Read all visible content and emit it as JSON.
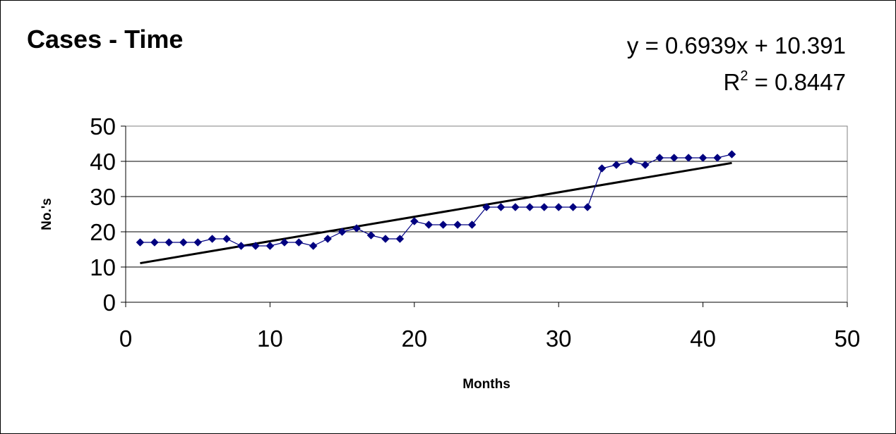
{
  "chart_data": {
    "type": "scatter",
    "title": "Cases - Time",
    "xlabel": "Months",
    "ylabel": "No.'s",
    "xlim": [
      0,
      50
    ],
    "ylim": [
      0,
      50
    ],
    "xticks": [
      0,
      10,
      20,
      30,
      40,
      50
    ],
    "yticks": [
      0,
      10,
      20,
      30,
      40,
      50
    ],
    "grid": "horizontal",
    "legend": "none",
    "series": [
      {
        "color": "#000080",
        "x": [
          1,
          2,
          3,
          4,
          5,
          6,
          7,
          8,
          9,
          10,
          11,
          12,
          13,
          14,
          15,
          16,
          17,
          18,
          19,
          20,
          21,
          22,
          23,
          24,
          25,
          26,
          27,
          28,
          29,
          30,
          31,
          32,
          33,
          34,
          35,
          36,
          37,
          38,
          39,
          40,
          41,
          42
        ],
        "y": [
          17,
          17,
          17,
          17,
          17,
          18,
          18,
          16,
          16,
          16,
          17,
          17,
          16,
          18,
          20,
          21,
          19,
          18,
          18,
          23,
          22,
          22,
          22,
          22,
          27,
          27,
          27,
          27,
          27,
          27,
          27,
          27,
          38,
          39,
          40,
          39,
          41,
          41,
          41,
          41,
          41,
          42
        ]
      }
    ],
    "trendline": {
      "type": "linear",
      "slope": 0.6939,
      "intercept": 10.391,
      "x_range": [
        1,
        42
      ],
      "color": "#000000",
      "equation_label": "y = 0.6939x + 10.391",
      "r2_prefix": "R",
      "r2_exponent": "2",
      "r2_suffix": " = 0.8447"
    }
  }
}
